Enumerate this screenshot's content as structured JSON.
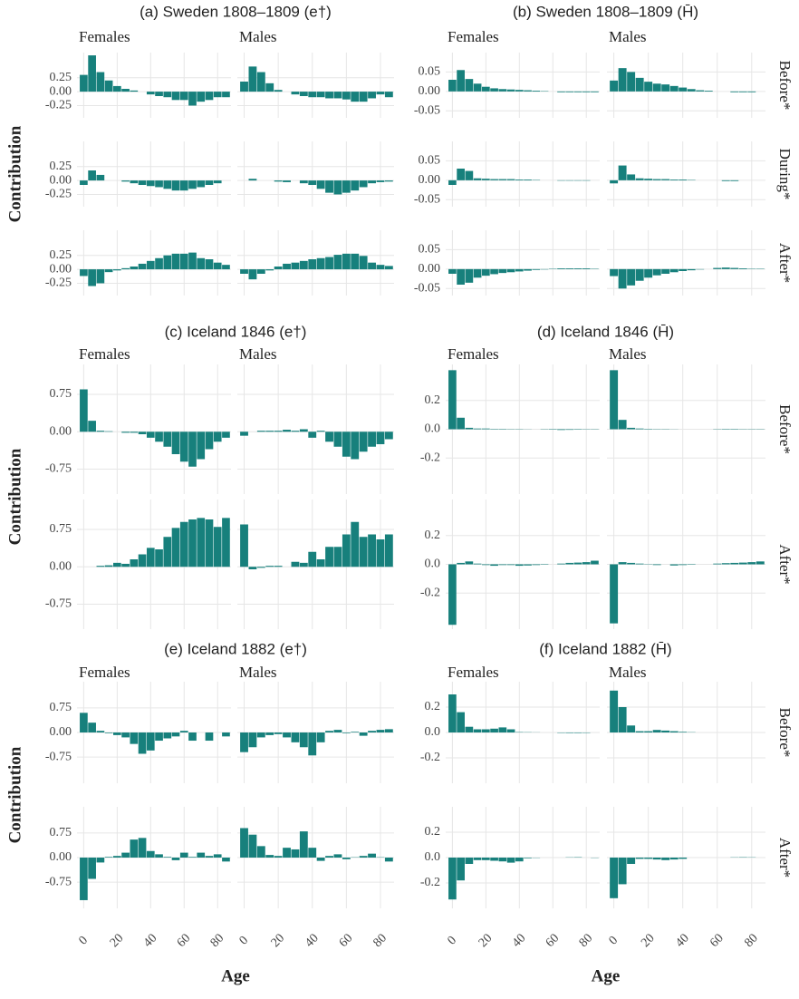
{
  "chart_data": [
    {
      "type": "bar",
      "title": "(a) Sweden 1808–1809 (e†)",
      "ylabel": "Contribution",
      "columns": [
        "Females",
        "Males"
      ],
      "x": [
        0,
        5,
        10,
        15,
        20,
        25,
        30,
        35,
        40,
        45,
        50,
        55,
        60,
        65,
        70,
        75,
        80,
        85
      ],
      "values": [
        [
          [
            0.3,
            0.65,
            0.35,
            0.2,
            0.1,
            0.05,
            0.02,
            0,
            -0.05,
            -0.08,
            -0.1,
            -0.15,
            -0.15,
            -0.25,
            -0.18,
            -0.15,
            -0.1,
            -0.1
          ],
          [
            0.18,
            0.45,
            0.35,
            0.15,
            0.03,
            0,
            -0.05,
            -0.08,
            -0.1,
            -0.1,
            -0.12,
            -0.12,
            -0.14,
            -0.18,
            -0.18,
            -0.12,
            -0.05,
            -0.1
          ]
        ],
        [
          [
            -0.08,
            0.18,
            0.1,
            0,
            0,
            -0.02,
            -0.05,
            -0.08,
            -0.1,
            -0.12,
            -0.15,
            -0.18,
            -0.18,
            -0.15,
            -0.12,
            -0.08,
            -0.05,
            0
          ],
          [
            0,
            0.03,
            0,
            0,
            -0.02,
            -0.03,
            0,
            -0.05,
            -0.08,
            -0.15,
            -0.22,
            -0.25,
            -0.22,
            -0.18,
            -0.12,
            -0.05,
            -0.03,
            -0.02
          ]
        ],
        [
          [
            -0.12,
            -0.3,
            -0.25,
            -0.05,
            -0.02,
            0.02,
            0.05,
            0.1,
            0.15,
            0.2,
            0.25,
            0.28,
            0.28,
            0.3,
            0.2,
            0.18,
            0.12,
            0.08
          ],
          [
            -0.08,
            -0.18,
            -0.08,
            -0.02,
            0.05,
            0.1,
            0.12,
            0.15,
            0.18,
            0.2,
            0.22,
            0.26,
            0.28,
            0.28,
            0.24,
            0.12,
            0.08,
            0.06
          ]
        ]
      ],
      "color": "#17807c",
      "xlim": [
        -4,
        88
      ],
      "xticks": [
        0,
        20,
        40,
        60,
        80
      ],
      "ylim": [
        -0.47,
        0.7
      ],
      "yticks": [
        -0.25,
        {
          "value": 0,
          "label": "0.00"
        },
        0.25
      ],
      "grid": true
    },
    {
      "type": "bar",
      "title": "(b) Sweden 1808–1809 (H̄)",
      "columns": [
        "Females",
        "Males"
      ],
      "rows": [
        "Before*",
        "During*",
        "After*"
      ],
      "x": [
        0,
        5,
        10,
        15,
        20,
        25,
        30,
        35,
        40,
        45,
        50,
        55,
        60,
        65,
        70,
        75,
        80,
        85
      ],
      "values": [
        [
          [
            0.03,
            0.055,
            0.032,
            0.02,
            0.012,
            0.008,
            0.006,
            0.005,
            0.004,
            0.003,
            0.002,
            0.001,
            0,
            -0.002,
            -0.002,
            -0.002,
            -0.002,
            -0.002
          ],
          [
            0.028,
            0.06,
            0.05,
            0.035,
            0.025,
            0.02,
            0.018,
            0.014,
            0.01,
            0.006,
            0.003,
            0.002,
            0,
            0,
            -0.002,
            -0.002,
            -0.002,
            0
          ]
        ],
        [
          [
            -0.012,
            0.03,
            0.024,
            0.005,
            0.004,
            0.003,
            0.003,
            0.003,
            0.002,
            0.002,
            0.001,
            0,
            0,
            -0.001,
            -0.001,
            -0.001,
            -0.001,
            0
          ],
          [
            -0.008,
            0.038,
            0.015,
            0.005,
            0.004,
            0.003,
            0.003,
            0.002,
            0.002,
            0.001,
            0,
            0,
            0,
            -0.002,
            -0.002,
            0,
            0,
            0
          ]
        ],
        [
          [
            -0.012,
            -0.04,
            -0.035,
            -0.022,
            -0.017,
            -0.013,
            -0.01,
            -0.008,
            -0.006,
            -0.004,
            -0.002,
            -0.001,
            0.001,
            0.002,
            0.002,
            0.002,
            0.002,
            0.001
          ],
          [
            -0.018,
            -0.05,
            -0.042,
            -0.03,
            -0.022,
            -0.016,
            -0.012,
            -0.008,
            -0.005,
            -0.003,
            -0.001,
            0,
            0.003,
            0.004,
            0.003,
            0.002,
            0.001,
            0.001
          ]
        ]
      ],
      "color": "#17807c",
      "xlim": [
        -4,
        88
      ],
      "xticks": [
        0,
        20,
        40,
        60,
        80
      ],
      "ylim": [
        -0.068,
        0.1
      ],
      "yticks": [
        -0.05,
        {
          "value": 0,
          "label": "0.00"
        },
        0.05
      ],
      "grid": true
    },
    {
      "type": "bar",
      "title": "(c) Iceland 1846 (e†)",
      "ylabel": "Contribution",
      "columns": [
        "Females",
        "Males"
      ],
      "x": [
        0,
        5,
        10,
        15,
        20,
        25,
        30,
        35,
        40,
        45,
        50,
        55,
        60,
        65,
        70,
        75,
        80,
        85
      ],
      "values": [
        [
          [
            0.85,
            0.22,
            0.02,
            0.01,
            0,
            -0.02,
            -0.02,
            -0.05,
            -0.12,
            -0.2,
            -0.3,
            -0.45,
            -0.6,
            -0.7,
            -0.55,
            -0.35,
            -0.2,
            -0.12
          ],
          [
            -0.08,
            0,
            0.02,
            0.02,
            0.02,
            0.04,
            0.02,
            0.05,
            -0.12,
            0.02,
            -0.2,
            -0.3,
            -0.5,
            -0.55,
            -0.4,
            -0.3,
            -0.25,
            -0.15
          ]
        ],
        [
          [
            0,
            0,
            0.02,
            0.03,
            0.08,
            0.06,
            0.15,
            0.25,
            0.38,
            0.35,
            0.6,
            0.78,
            0.9,
            0.95,
            0.98,
            0.95,
            0.8,
            0.98
          ],
          [
            0.85,
            -0.05,
            -0.02,
            0.02,
            0.02,
            0,
            0.1,
            0.08,
            0.3,
            0.15,
            0.4,
            0.4,
            0.65,
            0.9,
            0.6,
            0.65,
            0.55,
            0.65
          ]
        ]
      ],
      "color": "#17807c",
      "xlim": [
        -4,
        88
      ],
      "xticks": [
        0,
        20,
        40,
        60,
        80
      ],
      "ylim": [
        -1.25,
        1.35
      ],
      "yticks": [
        -0.75,
        {
          "value": 0,
          "label": "0.00"
        },
        0.75
      ],
      "grid": true
    },
    {
      "type": "bar",
      "title": "(d) Iceland 1846 (H̄)",
      "columns": [
        "Females",
        "Males"
      ],
      "rows": [
        "Before*",
        "After*"
      ],
      "x": [
        0,
        5,
        10,
        15,
        20,
        25,
        30,
        35,
        40,
        45,
        50,
        55,
        60,
        65,
        70,
        75,
        80,
        85
      ],
      "values": [
        [
          [
            0.41,
            0.08,
            0.01,
            0.005,
            0.005,
            0.003,
            0.003,
            0.002,
            0.002,
            0.001,
            0,
            -0.002,
            -0.003,
            -0.005,
            -0.004,
            -0.003,
            -0.002,
            -0.002
          ],
          [
            0.41,
            0.065,
            0.01,
            0.005,
            0.003,
            0.002,
            0.002,
            0.001,
            0,
            0,
            0,
            0,
            -0.002,
            -0.003,
            -0.003,
            -0.002,
            -0.002,
            -0.002
          ]
        ],
        [
          [
            -0.42,
            0.01,
            0.02,
            0.005,
            -0.005,
            -0.01,
            -0.005,
            -0.005,
            -0.01,
            -0.008,
            -0.005,
            -0.003,
            0,
            0.005,
            0.01,
            0.012,
            0.015,
            0.025
          ],
          [
            -0.41,
            0.015,
            0.01,
            0.005,
            -0.002,
            -0.005,
            0,
            -0.008,
            -0.005,
            -0.003,
            0,
            0,
            0.005,
            0.008,
            0.01,
            0.012,
            0.015,
            0.02
          ]
        ]
      ],
      "color": "#17807c",
      "xlim": [
        -4,
        88
      ],
      "xticks": [
        0,
        20,
        40,
        60,
        80
      ],
      "ylim": [
        -0.45,
        0.45
      ],
      "yticks": [
        -0.2,
        {
          "value": 0,
          "label": "0.0"
        },
        0.2
      ],
      "grid": true
    },
    {
      "type": "bar",
      "title": "(e) Iceland 1882 (e†)",
      "ylabel": "Contribution",
      "xlabel": "Age",
      "columns": [
        "Females",
        "Males"
      ],
      "x": [
        0,
        5,
        10,
        15,
        20,
        25,
        30,
        35,
        40,
        45,
        50,
        55,
        60,
        65,
        70,
        75,
        80,
        85
      ],
      "values": [
        [
          [
            0.6,
            0.3,
            0.05,
            -0.02,
            -0.08,
            -0.15,
            -0.35,
            -0.65,
            -0.55,
            -0.25,
            -0.18,
            -0.12,
            0.05,
            -0.25,
            0,
            -0.25,
            0,
            -0.12
          ],
          [
            -0.6,
            -0.45,
            -0.15,
            -0.08,
            -0.05,
            -0.15,
            -0.3,
            -0.45,
            -0.7,
            -0.3,
            0.05,
            0.08,
            -0.02,
            0.02,
            -0.1,
            0.05,
            0.08,
            0.1
          ]
        ],
        [
          [
            -1.3,
            -0.65,
            -0.15,
            0.02,
            0.05,
            0.15,
            0.55,
            0.6,
            0.2,
            0.1,
            0.02,
            -0.08,
            0.15,
            0.02,
            0.15,
            0.05,
            0.1,
            -0.12
          ],
          [
            0.9,
            0.7,
            0.35,
            0.08,
            0.05,
            0.3,
            0.25,
            0.8,
            0.3,
            -0.1,
            0.05,
            0.1,
            -0.05,
            0.01,
            0.05,
            0.12,
            0.01,
            -0.12
          ]
        ]
      ],
      "color": "#17807c",
      "xlim": [
        -4,
        88
      ],
      "xticks": [
        0,
        20,
        40,
        60,
        80
      ],
      "ylim": [
        -1.55,
        1.55
      ],
      "yticks": [
        -0.75,
        {
          "value": 0,
          "label": "0.00"
        },
        0.75
      ],
      "grid": true
    },
    {
      "type": "bar",
      "title": "(f) Iceland 1882 (H̄)",
      "xlabel": "Age",
      "columns": [
        "Females",
        "Males"
      ],
      "rows": [
        "Before*",
        "After*"
      ],
      "x": [
        0,
        5,
        10,
        15,
        20,
        25,
        30,
        35,
        40,
        45,
        50,
        55,
        60,
        65,
        70,
        75,
        80,
        85
      ],
      "values": [
        [
          [
            0.3,
            0.16,
            0.045,
            0.025,
            0.025,
            0.03,
            0.04,
            0.025,
            0.003,
            0.002,
            0.001,
            0,
            0,
            -0.003,
            -0.004,
            -0.004,
            -0.003,
            0
          ],
          [
            0.33,
            0.2,
            0.055,
            0.01,
            0.01,
            0.02,
            0.015,
            0.01,
            0.005,
            0.002,
            0,
            0,
            0,
            0,
            0,
            0,
            0,
            0
          ]
        ],
        [
          [
            -0.33,
            -0.18,
            -0.05,
            -0.02,
            -0.02,
            -0.025,
            -0.03,
            -0.04,
            -0.03,
            -0.005,
            -0.002,
            0,
            0,
            0,
            0.002,
            0.003,
            0,
            -0.002
          ],
          [
            -0.32,
            -0.21,
            -0.05,
            -0.01,
            -0.01,
            -0.015,
            -0.02,
            -0.015,
            -0.01,
            0,
            0,
            0,
            0,
            0,
            0.002,
            0.003,
            0.002,
            0
          ]
        ]
      ],
      "color": "#17807c",
      "xlim": [
        -4,
        88
      ],
      "xticks": [
        0,
        20,
        40,
        60,
        80
      ],
      "ylim": [
        -0.4,
        0.4
      ],
      "yticks": [
        -0.2,
        {
          "value": 0,
          "label": "0.0"
        },
        0.2
      ],
      "grid": true
    }
  ]
}
